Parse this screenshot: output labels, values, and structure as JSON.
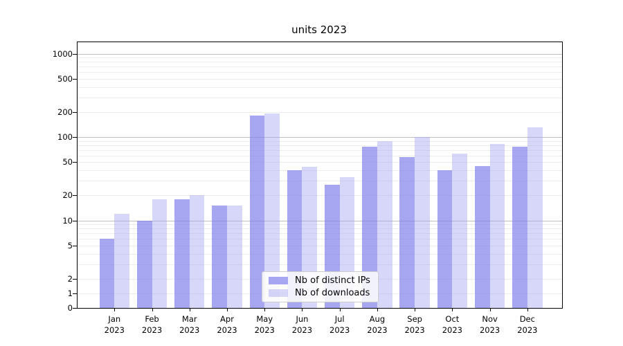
{
  "title": "units 2023",
  "year_label": "2023",
  "legend": {
    "items": [
      {
        "key": "distinct-ips",
        "label": "Nb of distinct IPs",
        "color": "rgba(125,125,235,0.68)"
      },
      {
        "key": "downloads",
        "label": "Nb of downloads",
        "color": "rgba(160,160,240,0.42)"
      }
    ]
  },
  "axis": {
    "y_tick_labels": [
      "0",
      "1",
      "2",
      "5",
      "10",
      "20",
      "50",
      "100",
      "200",
      "500",
      "1000"
    ],
    "x_tick_months": [
      "Jan",
      "Feb",
      "Mar",
      "Apr",
      "May",
      "Jun",
      "Jul",
      "Aug",
      "Sep",
      "Oct",
      "Nov",
      "Dec"
    ]
  },
  "colors": {
    "bar_dark": "rgba(125,125,235,0.68)",
    "bar_light": "rgba(160,160,240,0.42)",
    "grid_minor": "#ededed",
    "grid_major": "#bdbdbd",
    "axis_border": "#000000"
  },
  "chart_data": {
    "type": "bar",
    "title": "units 2023",
    "categories": [
      "Jan 2023",
      "Feb 2023",
      "Mar 2023",
      "Apr 2023",
      "May 2023",
      "Jun 2023",
      "Jul 2023",
      "Aug 2023",
      "Sep 2023",
      "Oct 2023",
      "Nov 2023",
      "Dec 2023"
    ],
    "series": [
      {
        "name": "Nb of distinct IPs",
        "values": [
          6,
          10,
          18,
          15,
          180,
          40,
          27,
          76,
          58,
          40,
          45,
          77
        ]
      },
      {
        "name": "Nb of downloads",
        "values": [
          12,
          18,
          20,
          15,
          190,
          44,
          33,
          90,
          100,
          63,
          82,
          130
        ]
      }
    ],
    "xlabel": "",
    "ylabel": "",
    "y_scale": "symlog",
    "y_ticks": [
      0,
      1,
      2,
      5,
      10,
      20,
      50,
      100,
      200,
      500,
      1000
    ],
    "y_minor_gridlines": [
      1,
      2,
      3,
      4,
      5,
      6,
      7,
      8,
      9,
      20,
      30,
      40,
      50,
      60,
      70,
      80,
      90,
      200,
      300,
      400,
      500,
      600,
      700,
      800,
      900
    ],
    "y_major_gridlines": [
      10,
      100,
      1000
    ],
    "ylim": [
      0,
      1400
    ],
    "grid": true,
    "legend_position": "lower center"
  }
}
